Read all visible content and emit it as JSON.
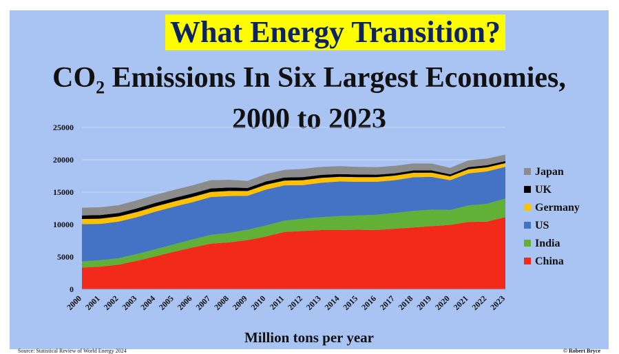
{
  "chart_data": {
    "type": "area",
    "stacked": true,
    "title": "What Energy Transition?",
    "subtitle_main": "CO",
    "subtitle_sub": "2",
    "subtitle_rest": " Emissions In Six Largest Economies,",
    "subtitle_line2": "2000 to 2023",
    "xlabel": "Million tons per year",
    "source": "Source: Statistical Review of World Energy 2024",
    "credit": "© Robert Bryce",
    "x": [
      "2000",
      "2001",
      "2002",
      "2003",
      "2004",
      "2005",
      "2006",
      "2007",
      "2008",
      "2009",
      "2010",
      "2011",
      "2012",
      "2013",
      "2014",
      "2015",
      "2016",
      "2017",
      "2018",
      "2019",
      "2020",
      "2021",
      "2022",
      "2023"
    ],
    "yticks": [
      0,
      5000,
      10000,
      15000,
      20000,
      25000
    ],
    "ylim": [
      0,
      25000
    ],
    "grid": true,
    "legend_position": "right",
    "series": [
      {
        "name": "China",
        "color": "#f22a1a",
        "values": [
          3350,
          3500,
          3800,
          4400,
          5100,
          5800,
          6450,
          7050,
          7250,
          7600,
          8150,
          8850,
          9000,
          9150,
          9150,
          9200,
          9150,
          9350,
          9550,
          9750,
          9950,
          10400,
          10450,
          11150
        ]
      },
      {
        "name": "India",
        "color": "#62b038",
        "values": [
          950,
          1000,
          1000,
          1050,
          1100,
          1150,
          1250,
          1350,
          1450,
          1600,
          1700,
          1750,
          1900,
          2000,
          2150,
          2200,
          2350,
          2450,
          2550,
          2550,
          2300,
          2550,
          2750,
          2850
        ]
      },
      {
        "name": "US",
        "color": "#4472c4",
        "values": [
          5750,
          5600,
          5650,
          5700,
          5800,
          5800,
          5750,
          5850,
          5700,
          5250,
          5550,
          5450,
          5200,
          5300,
          5350,
          5200,
          5100,
          5050,
          5200,
          5050,
          4600,
          4950,
          5000,
          4900
        ]
      },
      {
        "name": "Germany",
        "color": "#ffc000",
        "values": [
          800,
          800,
          800,
          800,
          800,
          800,
          800,
          780,
          780,
          720,
          760,
          740,
          750,
          760,
          720,
          720,
          720,
          700,
          690,
          650,
          600,
          640,
          630,
          580
        ]
      },
      {
        "name": "UK",
        "color": "#000000",
        "values": [
          550,
          560,
          540,
          550,
          550,
          550,
          550,
          540,
          530,
          480,
          500,
          460,
          480,
          460,
          420,
          400,
          380,
          370,
          360,
          350,
          310,
          330,
          330,
          320
        ]
      },
      {
        "name": "Japan",
        "color": "#8c8c8c",
        "values": [
          1200,
          1200,
          1200,
          1250,
          1250,
          1250,
          1250,
          1280,
          1200,
          1100,
          1150,
          1200,
          1250,
          1250,
          1220,
          1180,
          1160,
          1140,
          1100,
          1060,
          1000,
          1040,
          1030,
          1000
        ]
      }
    ]
  }
}
